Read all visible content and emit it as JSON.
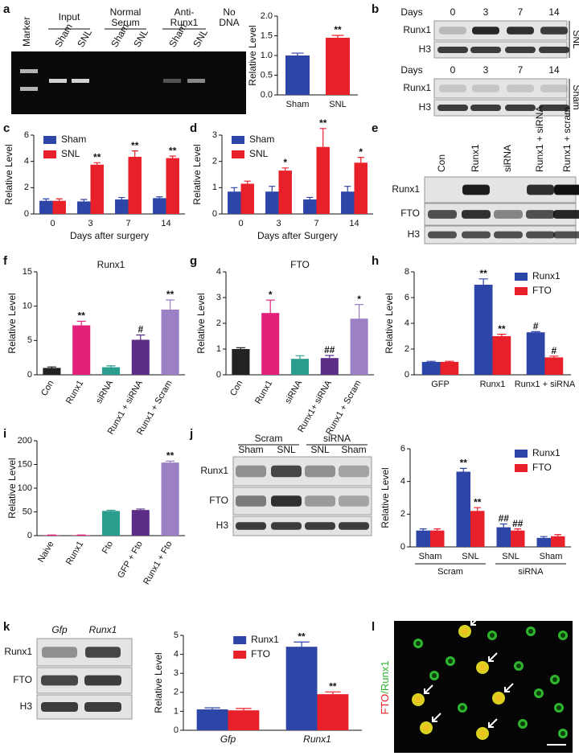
{
  "panel_labels": [
    "a",
    "b",
    "c",
    "d",
    "e",
    "f",
    "g",
    "h",
    "i",
    "j",
    "k",
    "l"
  ],
  "chart_data": [
    {
      "panel": "a",
      "type": "bar",
      "ylabel": "Relative Level",
      "categories": [
        "Sham",
        "SNL"
      ],
      "values": [
        1.0,
        1.45
      ],
      "errors": [
        0.06,
        0.06
      ],
      "colors": [
        "#2e45a8",
        "#e8202a"
      ],
      "annotations": [
        null,
        "**"
      ],
      "ylim": [
        0,
        2
      ],
      "yticks": [
        {
          "value": 0,
          "label": "0.0"
        },
        0.5,
        {
          "value": 1,
          "label": "1.0"
        },
        1.5,
        {
          "value": 2,
          "label": "2.0"
        }
      ]
    },
    {
      "panel": "c",
      "type": "bar",
      "ylabel": "Relative Level",
      "xlabel": "Days after surgery",
      "categories": [
        "0",
        "3",
        "7",
        "14"
      ],
      "legend": "upper left",
      "series": [
        {
          "name": "Sham",
          "color": "#2e45a8",
          "values": [
            1.0,
            0.95,
            1.1,
            1.2
          ],
          "errors": [
            0.15,
            0.15,
            0.15,
            0.1
          ],
          "annotations": [
            null,
            null,
            null,
            null
          ]
        },
        {
          "name": "SNL",
          "color": "#e8202a",
          "values": [
            1.0,
            3.75,
            4.35,
            4.25
          ],
          "errors": [
            0.15,
            0.15,
            0.45,
            0.15
          ],
          "annotations": [
            null,
            "**",
            "**",
            "**"
          ]
        }
      ],
      "ylim": [
        0,
        6
      ],
      "yticks": [
        0,
        2,
        4,
        6
      ]
    },
    {
      "panel": "d",
      "type": "bar",
      "ylabel": "Relative Level",
      "xlabel": "Days after Surgery",
      "categories": [
        "0",
        "3",
        "7",
        "14"
      ],
      "legend": "upper left",
      "series": [
        {
          "name": "Sham",
          "color": "#2e45a8",
          "values": [
            0.85,
            0.85,
            0.55,
            0.85
          ],
          "errors": [
            0.15,
            0.2,
            0.08,
            0.2
          ],
          "annotations": [
            null,
            null,
            null,
            null
          ]
        },
        {
          "name": "SNL",
          "color": "#e8202a",
          "values": [
            1.15,
            1.65,
            2.55,
            1.95
          ],
          "errors": [
            0.1,
            0.1,
            0.7,
            0.2
          ],
          "annotations": [
            null,
            "*",
            "**",
            "*"
          ]
        }
      ],
      "ylim": [
        0,
        3
      ],
      "yticks": [
        0,
        1,
        2,
        3
      ]
    },
    {
      "panel": "f",
      "type": "bar",
      "title": "Runx1",
      "ylabel": "Relative Level",
      "categories": [
        "Con",
        "Runx1",
        "siRNA",
        "Runx1 + siRNA",
        "Runx1 + Scram"
      ],
      "rotate_labels": true,
      "values": [
        1.0,
        7.2,
        1.1,
        5.1,
        9.5
      ],
      "errors": [
        0.15,
        0.6,
        0.2,
        0.7,
        1.4
      ],
      "colors": [
        "#222222",
        "#e3217b",
        "#2a9d8f",
        "#5b2d86",
        "#9c80c6"
      ],
      "annotations": [
        null,
        "**",
        null,
        "#",
        "**"
      ],
      "ylim": [
        0,
        15
      ],
      "yticks": [
        0,
        5,
        10,
        15
      ]
    },
    {
      "panel": "g",
      "type": "bar",
      "title": "FTO",
      "ylabel": "Relative Level",
      "categories": [
        "Con",
        "Runx1",
        "siRNA",
        "Runx1+ siRNA",
        "Runx1 + Scram"
      ],
      "rotate_labels": true,
      "values": [
        1.0,
        2.4,
        0.62,
        0.65,
        2.18
      ],
      "errors": [
        0.05,
        0.5,
        0.12,
        0.1,
        0.55
      ],
      "colors": [
        "#222222",
        "#e3217b",
        "#2a9d8f",
        "#5b2d86",
        "#9c80c6"
      ],
      "annotations": [
        null,
        "*",
        null,
        "##",
        "*"
      ],
      "ylim": [
        0,
        4
      ],
      "yticks": [
        0,
        1,
        2,
        3,
        4
      ]
    },
    {
      "panel": "h",
      "type": "bar",
      "ylabel": "Relative Level",
      "categories": [
        "GFP",
        "Runx1",
        "Runx1 + siRNA"
      ],
      "legend": "upper right",
      "series": [
        {
          "name": "Runx1",
          "color": "#2e45a8",
          "values": [
            1.0,
            7.0,
            3.3
          ],
          "errors": [
            0.05,
            0.45,
            0.05
          ],
          "annotations": [
            null,
            "**",
            "#"
          ]
        },
        {
          "name": "FTO",
          "color": "#e8202a",
          "values": [
            1.0,
            3.0,
            1.35
          ],
          "errors": [
            0.05,
            0.15,
            0.1
          ],
          "annotations": [
            null,
            "**",
            "#"
          ]
        }
      ],
      "ylim": [
        0,
        8
      ],
      "yticks": [
        0,
        2,
        4,
        6,
        8
      ]
    },
    {
      "panel": "i",
      "type": "bar",
      "ylabel": "Relative Level",
      "categories": [
        "Naive",
        "Runx1",
        "Fto",
        "GFP + Fto",
        "Runx1 + Fto"
      ],
      "rotate_labels": true,
      "values": [
        1,
        1,
        52,
        54,
        154
      ],
      "errors": [
        0.3,
        0.3,
        1.5,
        2,
        3
      ],
      "colors": [
        "#e3217b",
        "#e3217b",
        "#2a9d8f",
        "#5b2d86",
        "#9c80c6"
      ],
      "annotations": [
        null,
        null,
        null,
        null,
        "**"
      ],
      "ylim": [
        0,
        200
      ],
      "yticks": [
        0,
        50,
        100,
        150,
        200
      ]
    },
    {
      "panel": "j",
      "type": "bar",
      "ylabel": "Relative Level",
      "categories": [
        "Sham",
        "SNL",
        "SNL",
        "Sham"
      ],
      "groups": [
        "Scram",
        "siRNA"
      ],
      "legend": "upper right",
      "series": [
        {
          "name": "Runx1",
          "color": "#2e45a8",
          "values": [
            1.0,
            4.6,
            1.2,
            0.55
          ],
          "errors": [
            0.1,
            0.2,
            0.2,
            0.08
          ],
          "annotations": [
            null,
            "**",
            "##",
            null
          ]
        },
        {
          "name": "FTO",
          "color": "#e8202a",
          "values": [
            1.0,
            2.2,
            1.0,
            0.65
          ],
          "errors": [
            0.1,
            0.2,
            0.1,
            0.1
          ],
          "annotations": [
            null,
            "**",
            "##",
            null
          ]
        }
      ],
      "ylim": [
        0,
        6
      ],
      "yticks": [
        0,
        2,
        4,
        6
      ]
    },
    {
      "panel": "k",
      "type": "bar",
      "ylabel": "Relative Level",
      "categories": [
        "Gfp",
        "Runx1"
      ],
      "italic_labels": true,
      "legend": "upper center",
      "series": [
        {
          "name": "Runx1",
          "color": "#2e45a8",
          "values": [
            1.1,
            4.4
          ],
          "errors": [
            0.08,
            0.25
          ],
          "annotations": [
            null,
            "**"
          ]
        },
        {
          "name": "FTO",
          "color": "#e8202a",
          "values": [
            1.05,
            1.9
          ],
          "errors": [
            0.1,
            0.12
          ],
          "annotations": [
            null,
            "**"
          ]
        }
      ],
      "ylim": [
        0,
        5
      ],
      "yticks": [
        0,
        1,
        2,
        3,
        4,
        5
      ]
    }
  ],
  "blots": {
    "a": {
      "marker": "Marker",
      "groups": [
        [
          "Input"
        ],
        [
          "Normal",
          "Serum"
        ],
        [
          "Anti-",
          "Runx1"
        ],
        [
          "No",
          "DNA"
        ]
      ],
      "lanes": [
        "Sham",
        "SNL",
        "Sham",
        "SNL",
        "Sham",
        "SNL"
      ]
    },
    "b": [
      {
        "header": "Days",
        "lanes": [
          "0",
          "3",
          "7",
          "14"
        ],
        "rows": [
          "Runx1",
          "H3"
        ],
        "side": "SNL"
      },
      {
        "header": "Days",
        "lanes": [
          "0",
          "3",
          "7",
          "14"
        ],
        "rows": [
          "Runx1",
          "H3"
        ],
        "side": "Sham"
      }
    ],
    "e": {
      "lanes": [
        "Con",
        "Runx1",
        "siRNA",
        "Runx1 + siRNA",
        "Runx1 + scram"
      ],
      "rows": [
        "Runx1",
        "FTO",
        "H3"
      ]
    },
    "j": {
      "groups": [
        "Scram",
        "siRNA"
      ],
      "lanes": [
        "Sham",
        "SNL",
        "SNL",
        "Sham"
      ],
      "rows": [
        "Runx1",
        "FTO",
        "H3"
      ]
    },
    "k": {
      "lanes": [
        "Gfp",
        "Runx1"
      ],
      "rows": [
        "Runx1",
        "FTO",
        "H3"
      ]
    }
  },
  "micrograph": {
    "label_parts": [
      "FTO",
      "/Runx1"
    ]
  }
}
